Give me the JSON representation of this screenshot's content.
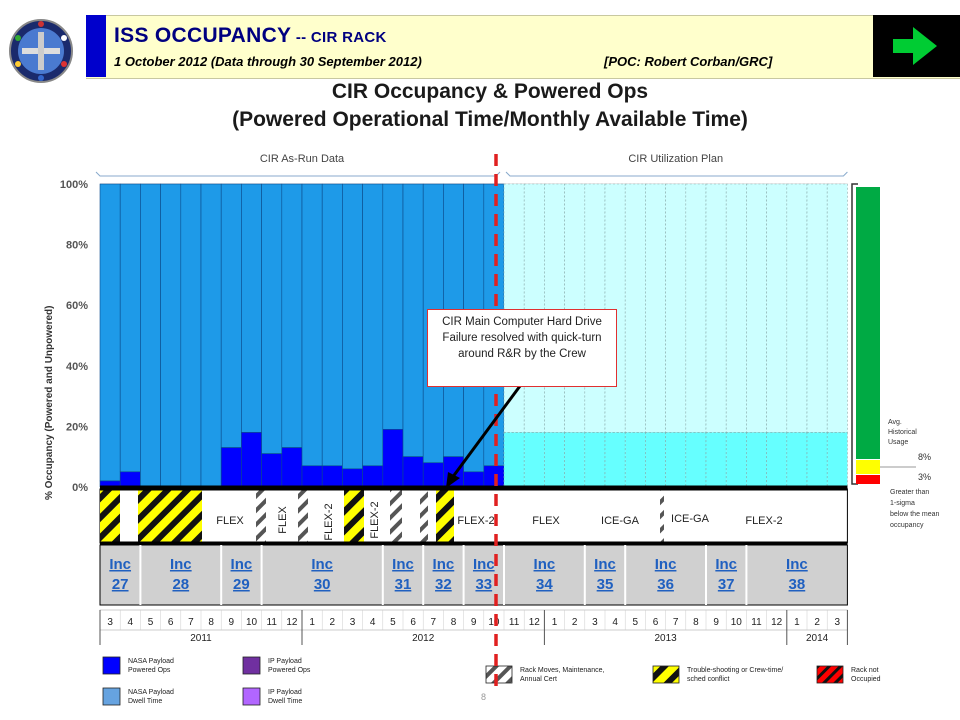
{
  "header": {
    "title_main": "ISS OCCUPANCY",
    "title_sep": " -- ",
    "title_rack": "CIR RACK",
    "date_line": "1 October 2012 (Data through 30 September 2012)",
    "poc": "[POC: Robert Corban/GRC]",
    "colors": {
      "bar": "#ffffcc",
      "accent": "#0000cc",
      "nav_bg": "#000000",
      "nav_arrow": "#00cc33"
    }
  },
  "titles": {
    "line1": "CIR Occupancy & Powered Ops",
    "line2": "(Powered Operational Time/Monthly Available Time)"
  },
  "annotation": {
    "text": "CIR Main Computer Hard Drive Failure resolved with quick-turn around R&R by the Crew"
  },
  "page_number": "8",
  "chart_data": {
    "type": "bar",
    "ylabel": "% Occupancy (Powered and Unpowered)",
    "ylim": [
      0,
      100
    ],
    "yticks": [
      "0%",
      "20%",
      "40%",
      "60%",
      "80%",
      "100%"
    ],
    "grid": true,
    "sections": {
      "as_run": "CIR As-Run Data",
      "plan": "CIR Utilization Plan"
    },
    "months": [
      "3",
      "4",
      "5",
      "6",
      "7",
      "8",
      "9",
      "10",
      "11",
      "12",
      "1",
      "2",
      "3",
      "4",
      "5",
      "6",
      "7",
      "8",
      "9",
      "10",
      "11",
      "12",
      "1",
      "2",
      "3",
      "4",
      "5",
      "6",
      "7",
      "8",
      "9",
      "10",
      "11",
      "12",
      "1",
      "2",
      "3"
    ],
    "years": [
      "2011",
      "2012",
      "2013",
      "2014"
    ],
    "series": [
      {
        "name": "NASA Payload Powered Ops",
        "color": "#0000ff",
        "values": [
          2,
          5,
          0,
          0,
          0,
          0,
          13,
          18,
          11,
          13,
          7,
          7,
          6,
          7,
          19,
          10,
          8,
          10,
          5,
          7,
          18,
          18,
          18,
          18,
          18,
          18,
          18,
          18,
          18,
          18,
          18,
          18,
          18,
          18,
          18,
          18,
          18
        ]
      },
      {
        "name": "NASA Payload Dwell Time",
        "color": "#1e9ae8",
        "values": [
          98,
          95,
          100,
          100,
          100,
          100,
          87,
          82,
          89,
          87,
          93,
          93,
          94,
          93,
          81,
          90,
          92,
          90,
          95,
          93,
          82,
          82,
          82,
          82,
          82,
          82,
          82,
          82,
          82,
          82,
          82,
          82,
          82,
          82,
          82,
          82,
          82
        ]
      }
    ],
    "plan_colors": {
      "powered": "#66ffff",
      "dwell": "#ccffff"
    },
    "increments": [
      "Inc 27",
      "Inc 28",
      "Inc 29",
      "Inc 30",
      "Inc 31",
      "Inc 32",
      "Inc 33",
      "Inc 34",
      "Inc 35",
      "Inc 36",
      "Inc 37",
      "Inc 38"
    ],
    "activities": [
      "FLEX",
      "FLEX",
      "FLEX-2",
      "FLEX-2",
      "FLEX-2",
      "FLEX",
      "ICE-GA",
      "ICE-GA",
      "FLEX-2"
    ],
    "historical": {
      "label": "Avg. Historical Usage",
      "values": [
        "8%",
        "3%"
      ],
      "note": "Greater than 1-sigma below the mean occupancy",
      "colors": {
        "green": "#00aa44",
        "yellow": "#ffff00",
        "red": "#ff0000"
      }
    },
    "legend": [
      {
        "label": "NASA Payload Powered Ops",
        "color": "#0000ff"
      },
      {
        "label": "NASA Payload Dwell Time",
        "color": "#66a3e0"
      },
      {
        "label": "IP Payload Powered Ops",
        "color": "#7030a0"
      },
      {
        "label": "IP Payload Dwell Time",
        "color": "#b266ff"
      },
      {
        "label": "Rack Moves, Maintenance, Annual Cert",
        "color": "#808080"
      },
      {
        "label": "Trouble-shooting or Crew-time/ sched conflict",
        "color": "#ffff00"
      },
      {
        "label": "Rack not Occupied",
        "color": "#ff0000"
      }
    ]
  }
}
